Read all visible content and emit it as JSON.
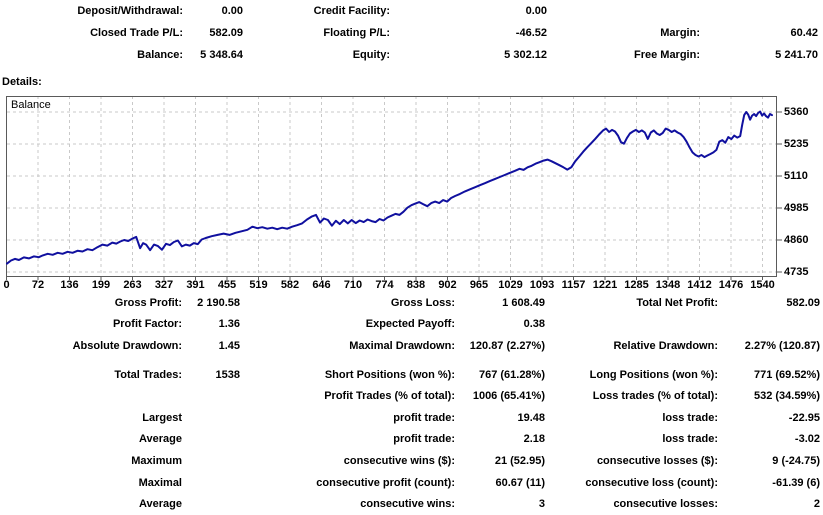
{
  "account_summary": {
    "rows": [
      {
        "l1": "Deposit/Withdrawal:",
        "v1": "0.00",
        "l2": "Credit Facility:",
        "v2": "0.00",
        "l3": "",
        "v3": ""
      },
      {
        "l1": "Closed Trade P/L:",
        "v1": "582.09",
        "l2": "Floating P/L:",
        "v2": "-46.52",
        "l3": "Margin:",
        "v3": "60.42"
      },
      {
        "l1": "Balance:",
        "v1": "5 348.64",
        "l2": "Equity:",
        "v2": "5 302.12",
        "l3": "Free Margin:",
        "v3": "5 241.70"
      }
    ]
  },
  "details_label": "Details:",
  "chart_data": {
    "type": "line",
    "title": "Balance",
    "legend_position": "top-left-inside",
    "grid": "dashed",
    "line_color": "#10109f",
    "grid_color": "#c9c9c9",
    "border_color": "#5a5a5a",
    "x_ticks": [
      0,
      72,
      136,
      199,
      263,
      327,
      391,
      455,
      519,
      582,
      646,
      710,
      774,
      838,
      902,
      965,
      1029,
      1093,
      1157,
      1221,
      1285,
      1348,
      1412,
      1476,
      1540
    ],
    "y_ticks": [
      5360,
      5235,
      5110,
      4985,
      4860,
      4735
    ],
    "xlim": [
      0,
      1569
    ],
    "ylim": [
      4719,
      5422
    ],
    "series": [
      {
        "name": "Balance",
        "points": [
          [
            0,
            4768
          ],
          [
            8,
            4780
          ],
          [
            16,
            4786
          ],
          [
            24,
            4782
          ],
          [
            34,
            4792
          ],
          [
            44,
            4788
          ],
          [
            54,
            4796
          ],
          [
            64,
            4793
          ],
          [
            72,
            4800
          ],
          [
            82,
            4806
          ],
          [
            92,
            4802
          ],
          [
            102,
            4810
          ],
          [
            112,
            4806
          ],
          [
            122,
            4814
          ],
          [
            132,
            4810
          ],
          [
            142,
            4818
          ],
          [
            152,
            4815
          ],
          [
            162,
            4824
          ],
          [
            172,
            4820
          ],
          [
            182,
            4832
          ],
          [
            192,
            4842
          ],
          [
            202,
            4838
          ],
          [
            212,
            4850
          ],
          [
            220,
            4846
          ],
          [
            228,
            4854
          ],
          [
            236,
            4860
          ],
          [
            244,
            4856
          ],
          [
            252,
            4865
          ],
          [
            260,
            4872
          ],
          [
            268,
            4828
          ],
          [
            274,
            4848
          ],
          [
            280,
            4842
          ],
          [
            288,
            4820
          ],
          [
            296,
            4842
          ],
          [
            304,
            4836
          ],
          [
            312,
            4822
          ],
          [
            320,
            4845
          ],
          [
            328,
            4840
          ],
          [
            336,
            4852
          ],
          [
            344,
            4858
          ],
          [
            352,
            4835
          ],
          [
            360,
            4842
          ],
          [
            368,
            4838
          ],
          [
            376,
            4848
          ],
          [
            384,
            4844
          ],
          [
            392,
            4862
          ],
          [
            400,
            4868
          ],
          [
            412,
            4875
          ],
          [
            424,
            4880
          ],
          [
            436,
            4885
          ],
          [
            448,
            4880
          ],
          [
            460,
            4888
          ],
          [
            472,
            4894
          ],
          [
            484,
            4900
          ],
          [
            494,
            4912
          ],
          [
            504,
            4906
          ],
          [
            514,
            4910
          ],
          [
            524,
            4904
          ],
          [
            534,
            4908
          ],
          [
            544,
            4902
          ],
          [
            554,
            4908
          ],
          [
            564,
            4904
          ],
          [
            574,
            4912
          ],
          [
            584,
            4918
          ],
          [
            594,
            4925
          ],
          [
            604,
            4940
          ],
          [
            614,
            4952
          ],
          [
            622,
            4958
          ],
          [
            630,
            4928
          ],
          [
            638,
            4944
          ],
          [
            646,
            4938
          ],
          [
            654,
            4916
          ],
          [
            662,
            4935
          ],
          [
            670,
            4922
          ],
          [
            678,
            4938
          ],
          [
            686,
            4925
          ],
          [
            694,
            4938
          ],
          [
            702,
            4926
          ],
          [
            710,
            4936
          ],
          [
            718,
            4930
          ],
          [
            726,
            4940
          ],
          [
            734,
            4934
          ],
          [
            742,
            4930
          ],
          [
            750,
            4942
          ],
          [
            758,
            4936
          ],
          [
            766,
            4948
          ],
          [
            774,
            4955
          ],
          [
            782,
            4962
          ],
          [
            790,
            4958
          ],
          [
            798,
            4970
          ],
          [
            806,
            4986
          ],
          [
            814,
            4996
          ],
          [
            822,
            5002
          ],
          [
            830,
            5008
          ],
          [
            838,
            5000
          ],
          [
            846,
            4992
          ],
          [
            854,
            5004
          ],
          [
            862,
            5010
          ],
          [
            870,
            5004
          ],
          [
            878,
            5016
          ],
          [
            886,
            5010
          ],
          [
            894,
            5024
          ],
          [
            902,
            5032
          ],
          [
            912,
            5040
          ],
          [
            922,
            5050
          ],
          [
            932,
            5058
          ],
          [
            942,
            5066
          ],
          [
            952,
            5074
          ],
          [
            962,
            5082
          ],
          [
            972,
            5090
          ],
          [
            982,
            5098
          ],
          [
            992,
            5106
          ],
          [
            1002,
            5114
          ],
          [
            1012,
            5122
          ],
          [
            1022,
            5130
          ],
          [
            1032,
            5138
          ],
          [
            1040,
            5134
          ],
          [
            1048,
            5144
          ],
          [
            1056,
            5150
          ],
          [
            1064,
            5158
          ],
          [
            1072,
            5164
          ],
          [
            1080,
            5170
          ],
          [
            1088,
            5174
          ],
          [
            1096,
            5168
          ],
          [
            1104,
            5160
          ],
          [
            1112,
            5152
          ],
          [
            1120,
            5144
          ],
          [
            1128,
            5135
          ],
          [
            1136,
            5144
          ],
          [
            1144,
            5168
          ],
          [
            1152,
            5186
          ],
          [
            1160,
            5205
          ],
          [
            1168,
            5222
          ],
          [
            1176,
            5238
          ],
          [
            1184,
            5255
          ],
          [
            1192,
            5272
          ],
          [
            1200,
            5288
          ],
          [
            1206,
            5295
          ],
          [
            1212,
            5282
          ],
          [
            1218,
            5290
          ],
          [
            1224,
            5284
          ],
          [
            1230,
            5268
          ],
          [
            1236,
            5242
          ],
          [
            1242,
            5236
          ],
          [
            1248,
            5258
          ],
          [
            1254,
            5276
          ],
          [
            1260,
            5284
          ],
          [
            1266,
            5290
          ],
          [
            1272,
            5282
          ],
          [
            1278,
            5288
          ],
          [
            1284,
            5280
          ],
          [
            1290,
            5255
          ],
          [
            1296,
            5280
          ],
          [
            1302,
            5288
          ],
          [
            1308,
            5276
          ],
          [
            1314,
            5270
          ],
          [
            1320,
            5278
          ],
          [
            1326,
            5295
          ],
          [
            1332,
            5290
          ],
          [
            1338,
            5282
          ],
          [
            1344,
            5288
          ],
          [
            1350,
            5280
          ],
          [
            1356,
            5274
          ],
          [
            1362,
            5262
          ],
          [
            1368,
            5244
          ],
          [
            1374,
            5222
          ],
          [
            1380,
            5202
          ],
          [
            1386,
            5192
          ],
          [
            1392,
            5186
          ],
          [
            1398,
            5192
          ],
          [
            1404,
            5184
          ],
          [
            1410,
            5190
          ],
          [
            1416,
            5196
          ],
          [
            1422,
            5202
          ],
          [
            1428,
            5212
          ],
          [
            1434,
            5244
          ],
          [
            1440,
            5250
          ],
          [
            1446,
            5240
          ],
          [
            1452,
            5262
          ],
          [
            1458,
            5254
          ],
          [
            1464,
            5268
          ],
          [
            1470,
            5260
          ],
          [
            1476,
            5266
          ],
          [
            1480,
            5310
          ],
          [
            1484,
            5348
          ],
          [
            1488,
            5360
          ],
          [
            1492,
            5350
          ],
          [
            1496,
            5330
          ],
          [
            1500,
            5346
          ],
          [
            1504,
            5352
          ],
          [
            1508,
            5344
          ],
          [
            1512,
            5356
          ],
          [
            1516,
            5362
          ],
          [
            1520,
            5346
          ],
          [
            1524,
            5354
          ],
          [
            1528,
            5344
          ],
          [
            1532,
            5338
          ],
          [
            1536,
            5352
          ],
          [
            1540,
            5348
          ]
        ]
      }
    ]
  },
  "stats": {
    "rows": [
      {
        "l1": "Gross Profit:",
        "v1": "2 190.58",
        "l2": "Gross Loss:",
        "v2": "1 608.49",
        "l3": "Total Net Profit:",
        "v3": "582.09"
      },
      {
        "l1": "Profit Factor:",
        "v1": "1.36",
        "l2": "Expected Payoff:",
        "v2": "0.38",
        "l3": "",
        "v3": ""
      },
      {
        "l1": "Absolute Drawdown:",
        "v1": "1.45",
        "l2": "Maximal Drawdown:",
        "v2": "120.87 (2.27%)",
        "l3": "Relative Drawdown:",
        "v3": "2.27% (120.87)"
      },
      {
        "l1": "Total Trades:",
        "v1": "1538",
        "l2": "Short Positions (won %):",
        "v2": "767 (61.28%)",
        "l3": "Long Positions (won %):",
        "v3": "771 (69.52%)"
      },
      {
        "l1": "",
        "v1": "",
        "l2": "Profit Trades (% of total):",
        "v2": "1006 (65.41%)",
        "l3": "Loss trades (% of total):",
        "v3": "532 (34.59%)"
      },
      {
        "l1": "Largest",
        "v1": "",
        "l2": "profit trade:",
        "v2": "19.48",
        "l3": "loss trade:",
        "v3": "-22.95"
      },
      {
        "l1": "Average",
        "v1": "",
        "l2": "profit trade:",
        "v2": "2.18",
        "l3": "loss trade:",
        "v3": "-3.02"
      },
      {
        "l1": "Maximum",
        "v1": "",
        "l2": "consecutive wins ($):",
        "v2": "21 (52.95)",
        "l3": "consecutive losses ($):",
        "v3": "9 (-24.75)"
      },
      {
        "l1": "Maximal",
        "v1": "",
        "l2": "consecutive profit (count):",
        "v2": "60.67 (11)",
        "l3": "consecutive loss (count):",
        "v3": "-61.39 (6)"
      },
      {
        "l1": "Average",
        "v1": "",
        "l2": "consecutive wins:",
        "v2": "3",
        "l3": "consecutive losses:",
        "v3": "2"
      }
    ]
  }
}
